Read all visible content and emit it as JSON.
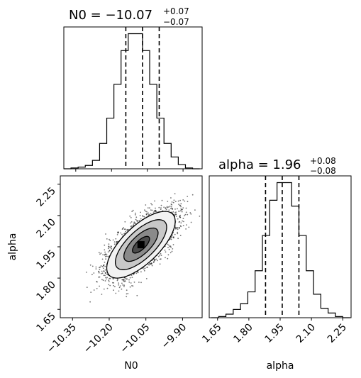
{
  "chart_data": [
    {
      "panel": "hist-N0",
      "type": "histogram-step",
      "title_param": "N0",
      "title_value": "−10.07",
      "title_err_plus": "+0.07",
      "title_err_minus": "−0.07",
      "xlim": [
        -10.4,
        -9.82
      ],
      "bin_edges": [
        -10.4,
        -10.37,
        -10.34,
        -10.31,
        -10.28,
        -10.25,
        -10.22,
        -10.19,
        -10.16,
        -10.13,
        -10.1,
        -10.07,
        -10.04,
        -10.01,
        -9.98,
        -9.95,
        -9.92,
        -9.89,
        -9.86,
        -9.83
      ],
      "counts": [
        0,
        1,
        2,
        4,
        10,
        30,
        60,
        100,
        140,
        160,
        160,
        140,
        100,
        60,
        30,
        14,
        5,
        1,
        0
      ],
      "quantiles": [
        -10.14,
        -10.07,
        -10.0
      ],
      "xticks": [
        -10.35,
        -10.2,
        -10.05,
        -9.9
      ],
      "yticks_shown": false
    },
    {
      "panel": "hist-alpha",
      "type": "histogram-step",
      "title_param": "alpha",
      "title_value": "1.96",
      "title_err_plus": "+0.08",
      "title_err_minus": "−0.08",
      "xlim": [
        1.61,
        2.29
      ],
      "bin_edges": [
        1.62,
        1.655,
        1.69,
        1.725,
        1.76,
        1.795,
        1.83,
        1.865,
        1.9,
        1.935,
        1.97,
        2.005,
        2.04,
        2.075,
        2.11,
        2.145,
        2.18,
        2.215,
        2.25,
        2.285
      ],
      "counts": [
        0,
        1,
        3,
        7,
        12,
        22,
        40,
        70,
        100,
        115,
        115,
        95,
        70,
        40,
        20,
        8,
        4,
        1,
        0
      ],
      "quantiles": [
        1.88,
        1.96,
        2.04
      ],
      "xticks": [
        1.65,
        1.8,
        1.95,
        2.1,
        2.25
      ],
      "xlabel": "alpha",
      "yticks_shown": false
    },
    {
      "panel": "2d-N0-alpha",
      "type": "scatter-contour",
      "xlabel": "N0",
      "ylabel": "alpha",
      "xlim": [
        -10.4,
        -9.82
      ],
      "ylim": [
        1.61,
        2.29
      ],
      "mean": [
        -10.07,
        1.96
      ],
      "std": [
        0.07,
        0.08
      ],
      "correlation": 0.7,
      "contour_levels_sigma": [
        0.5,
        1.0,
        1.5,
        2.0
      ],
      "xticks": [
        -10.35,
        -10.2,
        -10.05,
        -9.9
      ],
      "yticks": [
        1.65,
        1.8,
        1.95,
        2.1,
        2.25
      ]
    }
  ],
  "labels": {
    "n0_title_prefix": "N0 = ",
    "alpha_title_prefix": "alpha = ",
    "xlabel_n0": "N0",
    "xlabel_alpha": "alpha",
    "ylabel_alpha": "alpha",
    "n0_ticks": [
      "−10.35",
      "−10.20",
      "−10.05",
      "−9.90"
    ],
    "alpha_ticks": [
      "1.65",
      "1.80",
      "1.95",
      "2.10",
      "2.25"
    ]
  }
}
